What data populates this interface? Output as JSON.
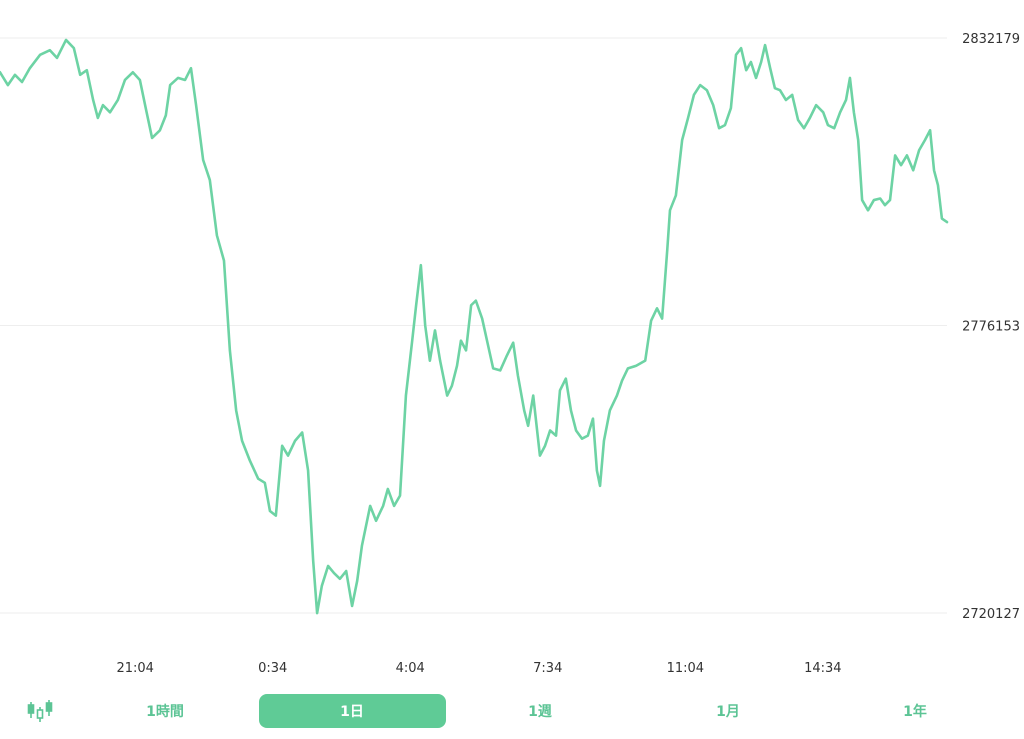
{
  "chart_data": {
    "type": "line",
    "color": "#6dd3a4",
    "grid": true,
    "xlim": [
      0,
      24.1
    ],
    "ylim": [
      2720127,
      2832179
    ],
    "yticks": [
      2720127,
      2776153,
      2832179
    ],
    "xticks": [
      {
        "value": 3.44,
        "label": "21:04"
      },
      {
        "value": 6.94,
        "label": "0:34"
      },
      {
        "value": 10.44,
        "label": "4:04"
      },
      {
        "value": 13.94,
        "label": "7:34"
      },
      {
        "value": 17.44,
        "label": "11:04"
      },
      {
        "value": 20.94,
        "label": "14:34"
      }
    ],
    "x": [
      0,
      0.2,
      0.38,
      0.56,
      0.76,
      1.02,
      1.27,
      1.45,
      1.68,
      1.88,
      2.04,
      2.21,
      2.37,
      2.49,
      2.62,
      2.8,
      3.0,
      3.18,
      3.38,
      3.56,
      3.72,
      3.87,
      4.07,
      4.22,
      4.33,
      4.53,
      4.71,
      4.86,
      4.99,
      5.17,
      5.34,
      5.52,
      5.7,
      5.85,
      6.01,
      6.16,
      6.36,
      6.57,
      6.74,
      6.87,
      7.02,
      7.18,
      7.33,
      7.51,
      7.69,
      7.84,
      7.97,
      8.07,
      8.19,
      8.35,
      8.5,
      8.65,
      8.81,
      8.96,
      9.09,
      9.21,
      9.42,
      9.57,
      9.75,
      9.87,
      10.03,
      10.18,
      10.33,
      10.49,
      10.59,
      10.71,
      10.82,
      10.94,
      11.07,
      11.2,
      11.38,
      11.5,
      11.63,
      11.73,
      11.86,
      11.99,
      12.11,
      12.27,
      12.42,
      12.55,
      12.73,
      12.9,
      13.06,
      13.18,
      13.34,
      13.44,
      13.57,
      13.74,
      13.87,
      14.0,
      14.15,
      14.25,
      14.4,
      14.53,
      14.66,
      14.81,
      14.96,
      15.09,
      15.19,
      15.27,
      15.37,
      15.52,
      15.7,
      15.83,
      15.98,
      16.19,
      16.42,
      16.57,
      16.72,
      16.85,
      16.98,
      17.05,
      17.2,
      17.36,
      17.51,
      17.66,
      17.82,
      17.99,
      18.15,
      18.3,
      18.45,
      18.6,
      18.73,
      18.86,
      18.99,
      19.11,
      19.24,
      19.37,
      19.47,
      19.6,
      19.72,
      19.85,
      20.0,
      20.16,
      20.31,
      20.46,
      20.61,
      20.77,
      20.95,
      21.07,
      21.23,
      21.38,
      21.53,
      21.63,
      21.73,
      21.84,
      21.94,
      22.09,
      22.24,
      22.4,
      22.52,
      22.65,
      22.78,
      22.93,
      23.08,
      23.24,
      23.39,
      23.54,
      23.67,
      23.77,
      23.87,
      23.97,
      24.1
    ],
    "values": [
      2825500,
      2823000,
      2825000,
      2823600,
      2826300,
      2828900,
      2829800,
      2828300,
      2831800,
      2830200,
      2825000,
      2825900,
      2820100,
      2816600,
      2819100,
      2817700,
      2820100,
      2824000,
      2825500,
      2824000,
      2818100,
      2812700,
      2814200,
      2817100,
      2823000,
      2824400,
      2824000,
      2826300,
      2819100,
      2808400,
      2804500,
      2793700,
      2788800,
      2771300,
      2759600,
      2753700,
      2749800,
      2746300,
      2745500,
      2740000,
      2739100,
      2752700,
      2750800,
      2753700,
      2755300,
      2747900,
      2730300,
      2720100,
      2725400,
      2729300,
      2727900,
      2726800,
      2728300,
      2721500,
      2726400,
      2733200,
      2741000,
      2738100,
      2741000,
      2744300,
      2741000,
      2743000,
      2762500,
      2773200,
      2780100,
      2787900,
      2776200,
      2769300,
      2775200,
      2769300,
      2762500,
      2764400,
      2768300,
      2773200,
      2771300,
      2780100,
      2781000,
      2777500,
      2772300,
      2767800,
      2767400,
      2770300,
      2772800,
      2766400,
      2759600,
      2756600,
      2762500,
      2750800,
      2752700,
      2755700,
      2754700,
      2763500,
      2765800,
      2759600,
      2755700,
      2754100,
      2754700,
      2758000,
      2747900,
      2744900,
      2753700,
      2759600,
      2762500,
      2765400,
      2767800,
      2768300,
      2769300,
      2777100,
      2779500,
      2777500,
      2790800,
      2798600,
      2801500,
      2812300,
      2816600,
      2821100,
      2823000,
      2822000,
      2819100,
      2814600,
      2815200,
      2818500,
      2828900,
      2830200,
      2825900,
      2827500,
      2824400,
      2827500,
      2830800,
      2826300,
      2822400,
      2822000,
      2820100,
      2821100,
      2816200,
      2814600,
      2816600,
      2819100,
      2817700,
      2815200,
      2814600,
      2817700,
      2820100,
      2824400,
      2817700,
      2812300,
      2800600,
      2798600,
      2800600,
      2800900,
      2799600,
      2800600,
      2809300,
      2807400,
      2809300,
      2806400,
      2810300,
      2812300,
      2814200,
      2806400,
      2803500,
      2797000,
      2796300
    ]
  },
  "ui": {
    "tabs": [
      "1時間",
      "1日",
      "1週",
      "1月",
      "1年"
    ],
    "active_tab": 1
  }
}
